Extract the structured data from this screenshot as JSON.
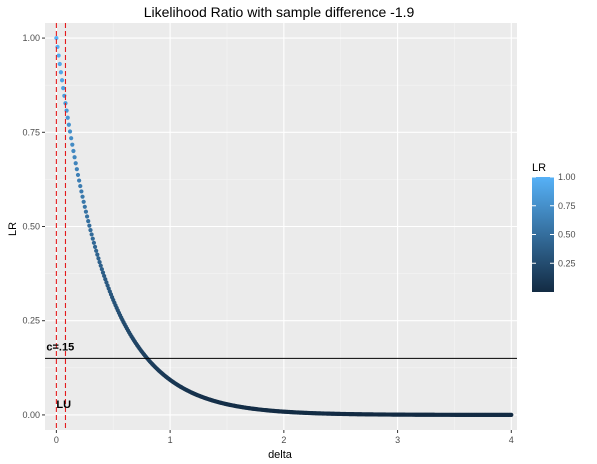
{
  "chart_data": {
    "type": "scatter",
    "title": "Likelihood Ratio with sample difference -1.9",
    "xlabel": "delta",
    "ylabel": "LR",
    "xlim": [
      -0.1,
      4.05
    ],
    "ylim": [
      -0.04,
      1.04
    ],
    "x_ticks": [
      0,
      1,
      2,
      3,
      4
    ],
    "y_ticks": [
      0.0,
      0.25,
      0.5,
      0.75,
      1.0
    ],
    "x_tick_labels": [
      "0",
      "1",
      "2",
      "3",
      "4"
    ],
    "y_tick_labels": [
      "0.00",
      "0.25",
      "0.50",
      "0.75",
      "1.00"
    ],
    "grid": true,
    "series": [
      {
        "color_by": "LR",
        "x_range": [
          0,
          4
        ],
        "step": 0.01,
        "decay_rate": 2.375,
        "description_of_values": "LR(delta) ≈ exp(-2.375*delta); LR = 1 at delta = 0, ≈ 0.15 at delta = 0.8"
      }
    ],
    "points": [
      {
        "x": 0.0,
        "y": 1.0
      },
      {
        "x": 0.2,
        "y": 0.62
      },
      {
        "x": 0.4,
        "y": 0.39
      },
      {
        "x": 0.6,
        "y": 0.24
      },
      {
        "x": 0.8,
        "y": 0.15
      },
      {
        "x": 1.0,
        "y": 0.093
      },
      {
        "x": 1.5,
        "y": 0.028
      },
      {
        "x": 2.0,
        "y": 0.009
      },
      {
        "x": 3.0,
        "y": 0.0008
      },
      {
        "x": 4.0,
        "y": 0.0001
      }
    ],
    "reference_lines": {
      "horizontal": {
        "y": 0.15,
        "label": "c=.15",
        "color": "#000000"
      },
      "vertical": [
        {
          "x": 0.0,
          "color": "#e41a1c",
          "style": "dashed"
        },
        {
          "x": 0.08,
          "color": "#e41a1c",
          "style": "dashed"
        }
      ],
      "vertical_label": "LU"
    },
    "legend": {
      "title": "LR",
      "position": "right",
      "type": "colorbar",
      "low_color": "#132b43",
      "high_color": "#56b1f7",
      "range": [
        0.0,
        1.0
      ],
      "breaks": [
        0.25,
        0.5,
        0.75,
        1.0
      ],
      "break_labels": [
        "0.25",
        "0.50",
        "0.75",
        "1.00"
      ]
    },
    "colors": {
      "panel_background": "#ebebeb",
      "grid_major": "#ffffff",
      "grid_minor": "#f5f5f5"
    }
  }
}
